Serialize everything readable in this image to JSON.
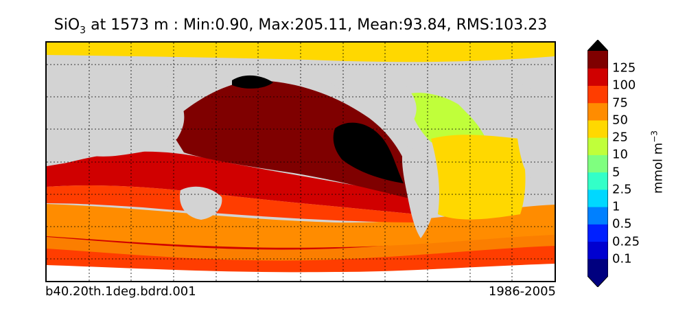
{
  "title": {
    "var_main": "SiO",
    "var_sub": "3",
    "rest": " at 1573 m : Min:0.90, Max:205.11, Mean:93.84, RMS:103.23"
  },
  "case_name": "b40.20th.1deg.bdrd.001",
  "years": "1986-2005",
  "colorbar": {
    "unit_main": "mmol m",
    "unit_sup": "−3",
    "levels": [
      "0.1",
      "0.25",
      "0.5",
      "1",
      "2.5",
      "5",
      "10",
      "25",
      "50",
      "75",
      "100",
      "125"
    ],
    "colors": [
      "#00007f",
      "#0000d0",
      "#0020ff",
      "#0080ff",
      "#00d8ff",
      "#33ffc8",
      "#7fff7f",
      "#c0ff3a",
      "#ffd800",
      "#ff8c00",
      "#ff3d00",
      "#d00000",
      "#7f0000"
    ],
    "extend_low_color": "#00007f",
    "extend_high_color": "#000000"
  },
  "map_colors": {
    "land": "#d3d3d3",
    "sea_ice": "#ffffff",
    "black_band": "#000000"
  }
}
